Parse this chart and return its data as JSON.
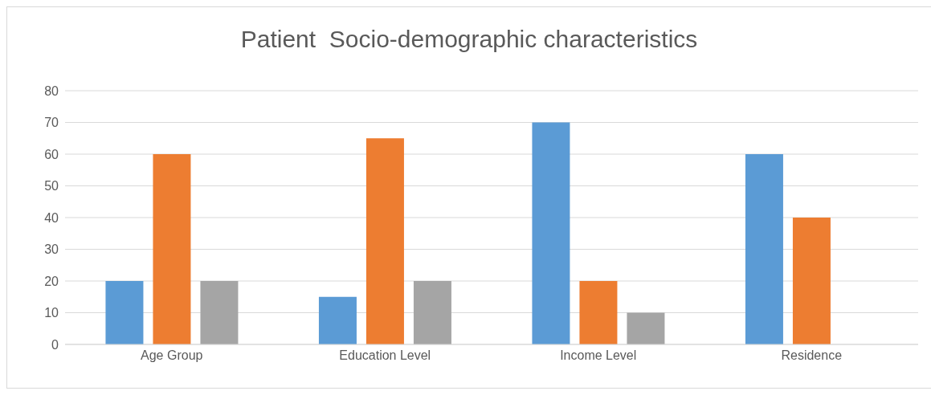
{
  "chart_data": {
    "type": "bar",
    "title": "Patient  Socio-demographic characteristics",
    "categories": [
      "Age Group",
      "Education Level",
      "Income Level",
      "Residence"
    ],
    "series": [
      {
        "color": "#5b9bd5",
        "values": [
          20,
          15,
          70,
          60
        ]
      },
      {
        "color": "#ed7d31",
        "values": [
          60,
          65,
          20,
          40
        ]
      },
      {
        "color": "#a5a5a5",
        "values": [
          20,
          20,
          10,
          null
        ]
      }
    ],
    "ylim": [
      0,
      80
    ],
    "yticks": [
      0,
      10,
      20,
      30,
      40,
      50,
      60,
      70,
      80
    ],
    "grid": "y"
  }
}
